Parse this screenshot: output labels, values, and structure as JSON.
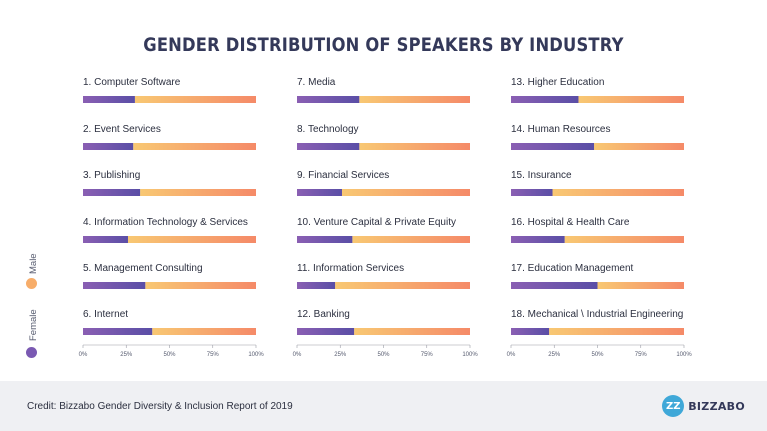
{
  "chart_data": {
    "type": "bar",
    "title": "GENDER DISTRIBUTION OF SPEAKERS BY INDUSTRY",
    "legend": {
      "placement": "left",
      "entries": [
        {
          "name": "Male",
          "color": "#f7ad6a"
        },
        {
          "name": "Female",
          "color": "#7a59b2"
        }
      ]
    },
    "colors": {
      "female_start": "#8a5fb3",
      "female_end": "#5a4ea6",
      "male_start": "#f8c873",
      "male_end": "#f58a68"
    },
    "xlim": [
      0,
      100
    ],
    "ticks": [
      "0%",
      "25%",
      "50%",
      "75%",
      "100%"
    ],
    "series": [
      {
        "name": "Female",
        "values": [
          30,
          29,
          33,
          26,
          36,
          40,
          36,
          36,
          26,
          32,
          22,
          33,
          39,
          48,
          24,
          31,
          50,
          22
        ]
      },
      {
        "name": "Male",
        "values": [
          70,
          71,
          67,
          74,
          64,
          60,
          64,
          64,
          74,
          68,
          78,
          67,
          61,
          52,
          76,
          69,
          50,
          78
        ]
      }
    ],
    "categories": [
      "1. Computer Software",
      "2. Event Services",
      "3. Publishing",
      "4. Information Technology & Services",
      "5. Management Consulting",
      "6. Internet",
      "7. Media",
      "8. Technology",
      "9. Financial Services",
      "10. Venture Capital & Private Equity",
      "11. Information Services",
      "12. Banking",
      "13. Higher Education",
      "14. Human Resources",
      "15. Insurance",
      "16. Hospital & Health Care",
      "17. Education Management",
      "18. Mechanical \\ Industrial Engineering"
    ]
  },
  "footer": {
    "credit": "Credit: Bizzabo Gender Diversity & Inclusion Report of 2019",
    "brand_mark": "ZZ",
    "brand_name": "BIZZABO"
  }
}
